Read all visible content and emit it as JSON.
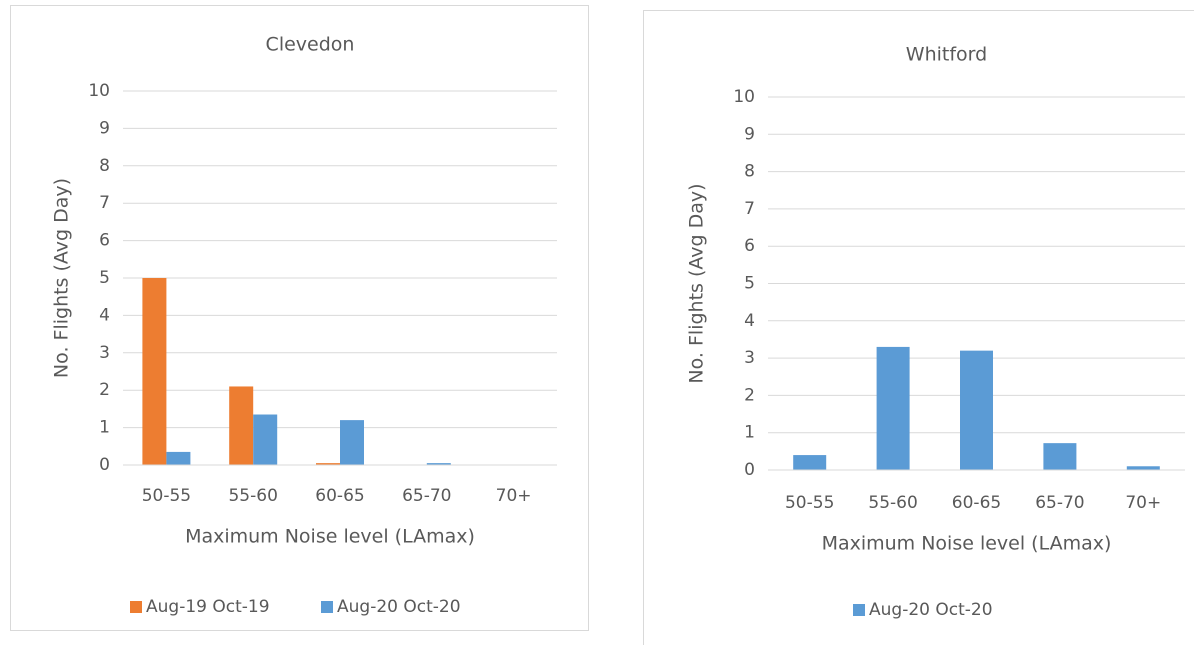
{
  "chart_data": [
    {
      "type": "bar",
      "title": "Clevedon",
      "x_label": "Maximum Noise level (LAmax)",
      "y_label": "No. Flights (Avg Day)",
      "categories": [
        "50-55",
        "55-60",
        "60-65",
        "65-70",
        "70+"
      ],
      "series": [
        {
          "name": "Aug-19 Oct-19",
          "color": "#ed7d31",
          "values": [
            5.0,
            2.1,
            0.05,
            0,
            0
          ]
        },
        {
          "name": "Aug-20 Oct-20",
          "color": "#5b9bd5",
          "values": [
            0.35,
            1.35,
            1.2,
            0.05,
            0
          ]
        }
      ],
      "ylim": [
        0,
        10
      ],
      "yticks": [
        0,
        1,
        2,
        3,
        4,
        5,
        6,
        7,
        8,
        9,
        10
      ],
      "grid": true,
      "legend": "bottom"
    },
    {
      "type": "bar",
      "title": "Whitford",
      "x_label": "Maximum Noise level (LAmax)",
      "y_label": "No. Flights (Avg Day)",
      "categories": [
        "50-55",
        "55-60",
        "60-65",
        "65-70",
        "70+"
      ],
      "series": [
        {
          "name": "Aug-20 Oct-20",
          "color": "#5b9bd5",
          "values": [
            0.4,
            3.3,
            3.2,
            0.72,
            0.1
          ]
        }
      ],
      "ylim": [
        0,
        10
      ],
      "yticks": [
        0,
        1,
        2,
        3,
        4,
        5,
        6,
        7,
        8,
        9,
        10
      ],
      "grid": true,
      "legend": "bottom"
    }
  ]
}
